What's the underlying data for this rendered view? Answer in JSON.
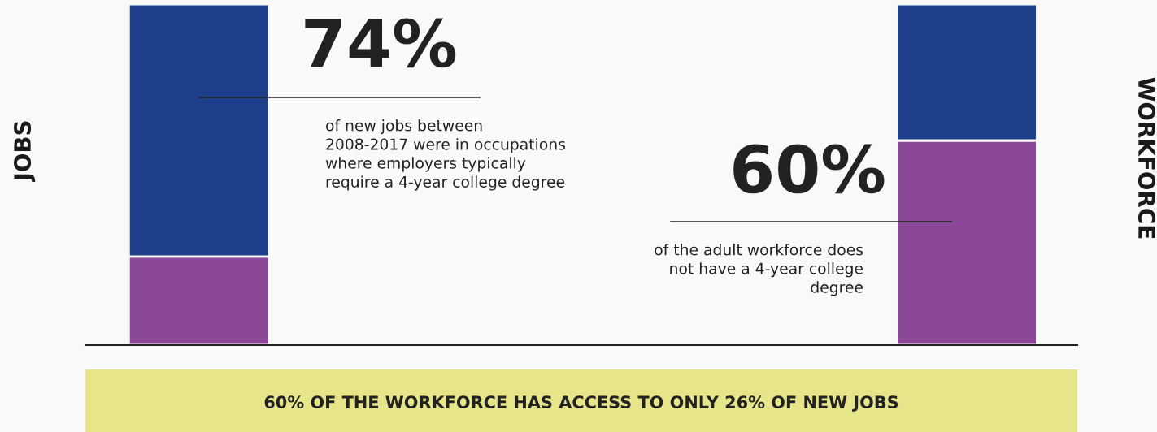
{
  "chart_data": {
    "type": "bar",
    "stacked": true,
    "categories": [
      "JOBS",
      "WORKFORCE"
    ],
    "series": [
      {
        "color": "#8b4896",
        "values": [
          26,
          60
        ],
        "value_labels": [
          null,
          "60%"
        ]
      },
      {
        "color": "#1e3f8a",
        "values": [
          74,
          40
        ],
        "value_labels": [
          "74%",
          null
        ]
      }
    ],
    "ylim": [
      0,
      100
    ],
    "annotations": [
      "of new jobs between 2008-2017 were in occupations where employers typically require a 4-year college degree",
      "of the adult workforce does not have a 4-year college degree",
      "60% OF THE WORKFORCE HAS ACCESS TO ONLY 26% OF NEW JOBS"
    ]
  }
}
